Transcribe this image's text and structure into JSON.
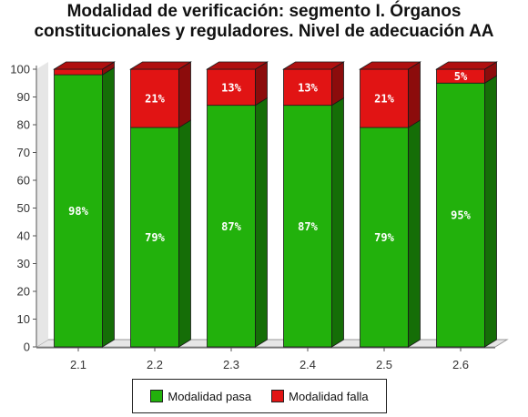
{
  "chart_data": {
    "type": "bar",
    "stacked": true,
    "three_d": true,
    "title_lines": [
      "Modalidad de verificación: segmento I. Órganos",
      "constitucionales y reguladores. Nivel de adecuación AA"
    ],
    "categories": [
      "2.1",
      "2.2",
      "2.3",
      "2.4",
      "2.5",
      "2.6"
    ],
    "series": [
      {
        "name": "Modalidad pasa",
        "color": "#22b10c",
        "values": [
          98,
          79,
          87,
          87,
          79,
          95
        ],
        "labels": [
          "98%",
          "79%",
          "87%",
          "87%",
          "79%",
          "95%"
        ]
      },
      {
        "name": "Modalidad falla",
        "color": "#e11414",
        "values": [
          2,
          21,
          13,
          13,
          21,
          5
        ],
        "labels": [
          "",
          "21%",
          "13%",
          "13%",
          "21%",
          "5%"
        ]
      }
    ],
    "ylim": [
      0,
      100
    ],
    "yticks": [
      0,
      10,
      20,
      30,
      40,
      50,
      60,
      70,
      80,
      90,
      100
    ],
    "grid": false,
    "legend_position": "bottom",
    "xlabel": "",
    "ylabel": ""
  }
}
